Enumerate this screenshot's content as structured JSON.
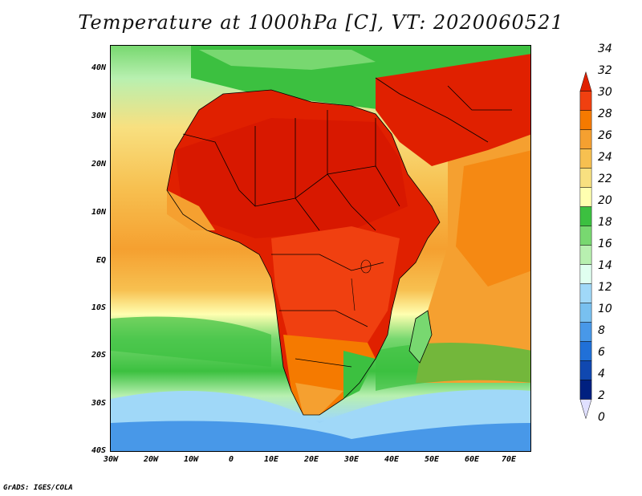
{
  "title": "Temperature at 1000hPa [C], VT: 2020060521",
  "footer": "GrADS: IGES/COLA",
  "lat_labels": [
    "40N",
    "30N",
    "20N",
    "10N",
    "EQ",
    "10S",
    "20S",
    "30S",
    "40S"
  ],
  "lon_labels": [
    "30W",
    "20W",
    "10W",
    "0",
    "10E",
    "20E",
    "30E",
    "40E",
    "50E",
    "60E",
    "70E"
  ],
  "colorbar": {
    "levels": [
      "34",
      "32",
      "30",
      "28",
      "26",
      "24",
      "22",
      "20",
      "18",
      "16",
      "14",
      "12",
      "10",
      "8",
      "6",
      "4",
      "2",
      "0"
    ],
    "colors": [
      "#e02000",
      "#f04010",
      "#f57a00",
      "#f5a030",
      "#f7c050",
      "#f8e080",
      "#ffffb0",
      "#3cc040",
      "#78d870",
      "#b8f0b0",
      "#e0fff0",
      "#a0d8f8",
      "#78c0f0",
      "#4898e8",
      "#2070d8",
      "#1048b0",
      "#002080",
      "#e0e0ff"
    ]
  },
  "map": {
    "projection": "lat-lon",
    "lon_range": [
      -30,
      75
    ],
    "lat_range": [
      -40,
      45
    ],
    "variable": "Temperature at 1000hPa",
    "units": "C",
    "valid_time": "2020060521"
  }
}
